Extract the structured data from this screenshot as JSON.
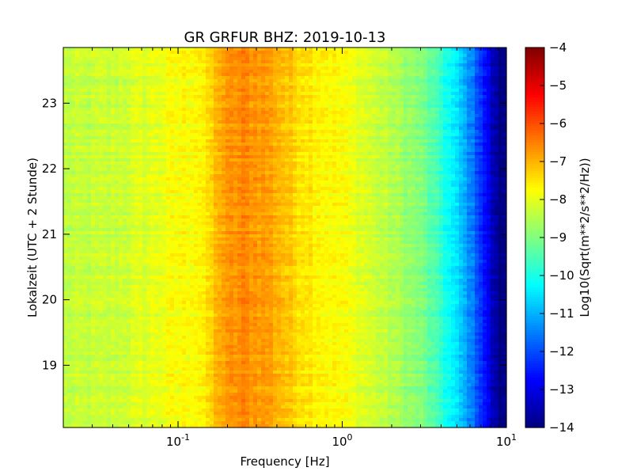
{
  "chart_data": {
    "type": "heatmap",
    "title": "GR GRFUR BHZ: 2019-10-13",
    "xlabel": "Frequency [Hz]",
    "ylabel": "Lokalzeit (UTC + 2 Stunde)",
    "x_scale": "log",
    "xlim": [
      0.02,
      10
    ],
    "x_ticks": [
      {
        "value": 0.1,
        "base": "10",
        "exp": "-1"
      },
      {
        "value": 1,
        "base": "10",
        "exp": "0"
      },
      {
        "value": 10,
        "base": "10",
        "exp": "1"
      }
    ],
    "ylim": [
      23.85,
      18.05
    ],
    "y_ticks": [
      19,
      20,
      21,
      22,
      23
    ],
    "colorbar": {
      "label": "Log10(Sqrt(m**2/s**2/Hz))",
      "colormap": "jet",
      "range": [
        -14,
        -4
      ],
      "ticks": [
        -4,
        -5,
        -6,
        -7,
        -8,
        -9,
        -10,
        -11,
        -12,
        -13,
        -14
      ]
    },
    "spectrum_profile": {
      "frequency_hz": [
        0.02,
        0.04,
        0.06,
        0.1,
        0.15,
        0.18,
        0.25,
        0.35,
        0.5,
        0.8,
        1.0,
        1.5,
        2.0,
        3.0,
        4.0,
        5.0,
        6.0,
        7.0,
        8.0,
        9.0,
        10.0
      ],
      "value": [
        -8.4,
        -8.3,
        -8.1,
        -7.8,
        -7.6,
        -6.9,
        -6.6,
        -6.8,
        -7.3,
        -7.7,
        -7.8,
        -8.2,
        -8.5,
        -9.0,
        -9.8,
        -10.6,
        -11.4,
        -12.2,
        -13.2,
        -14.0,
        -14.0
      ]
    }
  }
}
